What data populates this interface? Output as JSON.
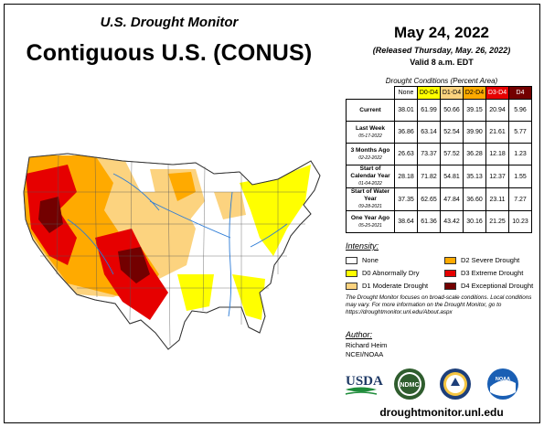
{
  "header": {
    "subtitle": "U.S. Drought Monitor",
    "title": "Contiguous U.S. (CONUS)"
  },
  "release": {
    "date": "May 24, 2022",
    "released": "(Released Thursday, May. 26, 2022)",
    "valid": "Valid 8 a.m. EDT"
  },
  "conditions": {
    "title": "Drought Conditions (Percent Area)",
    "columns": [
      "None",
      "D0-D4",
      "D1-D4",
      "D2-D4",
      "D3-D4",
      "D4"
    ],
    "column_colors": [
      "#ffffff",
      "#ffff00",
      "#fcd37f",
      "#ffaa00",
      "#e60000",
      "#730000"
    ],
    "rows": [
      {
        "label": "Current",
        "date": "",
        "values": [
          "38.01",
          "61.99",
          "50.66",
          "39.15",
          "20.94",
          "5.96"
        ]
      },
      {
        "label": "Last Week",
        "date": "05-17-2022",
        "values": [
          "36.86",
          "63.14",
          "52.54",
          "39.90",
          "21.61",
          "5.77"
        ]
      },
      {
        "label": "3 Months Ago",
        "date": "02-22-2022",
        "values": [
          "26.63",
          "73.37",
          "57.52",
          "36.28",
          "12.18",
          "1.23"
        ]
      },
      {
        "label": "Start of Calendar Year",
        "date": "01-04-2022",
        "values": [
          "28.18",
          "71.82",
          "54.81",
          "35.13",
          "12.37",
          "1.55"
        ]
      },
      {
        "label": "Start of Water Year",
        "date": "09-28-2021",
        "values": [
          "37.35",
          "62.65",
          "47.84",
          "36.60",
          "23.11",
          "7.27"
        ]
      },
      {
        "label": "One Year Ago",
        "date": "05-25-2021",
        "values": [
          "38.64",
          "61.36",
          "43.42",
          "30.16",
          "21.25",
          "10.23"
        ]
      }
    ]
  },
  "intensity": {
    "title": "Intensity:",
    "items": [
      {
        "label": "None",
        "color": "#ffffff"
      },
      {
        "label": "D0 Abnormally Dry",
        "color": "#ffff00"
      },
      {
        "label": "D1 Moderate Drought",
        "color": "#fcd37f"
      },
      {
        "label": "D2 Severe Drought",
        "color": "#ffaa00"
      },
      {
        "label": "D3 Extreme Drought",
        "color": "#e60000"
      },
      {
        "label": "D4 Exceptional Drought",
        "color": "#730000"
      }
    ]
  },
  "note": "The Drought Monitor focuses on broad-scale conditions. Local conditions may vary. For more information on the Drought Monitor, go to https://droughtmonitor.unl.edu/About.aspx",
  "author": {
    "title": "Author:",
    "name": "Richard Heim",
    "org": "NCEI/NOAA"
  },
  "logos": {
    "usda": "USDA",
    "ndmc": "NDMC",
    "noaa": "NOAA"
  },
  "url": "droughtmonitor.unl.edu"
}
